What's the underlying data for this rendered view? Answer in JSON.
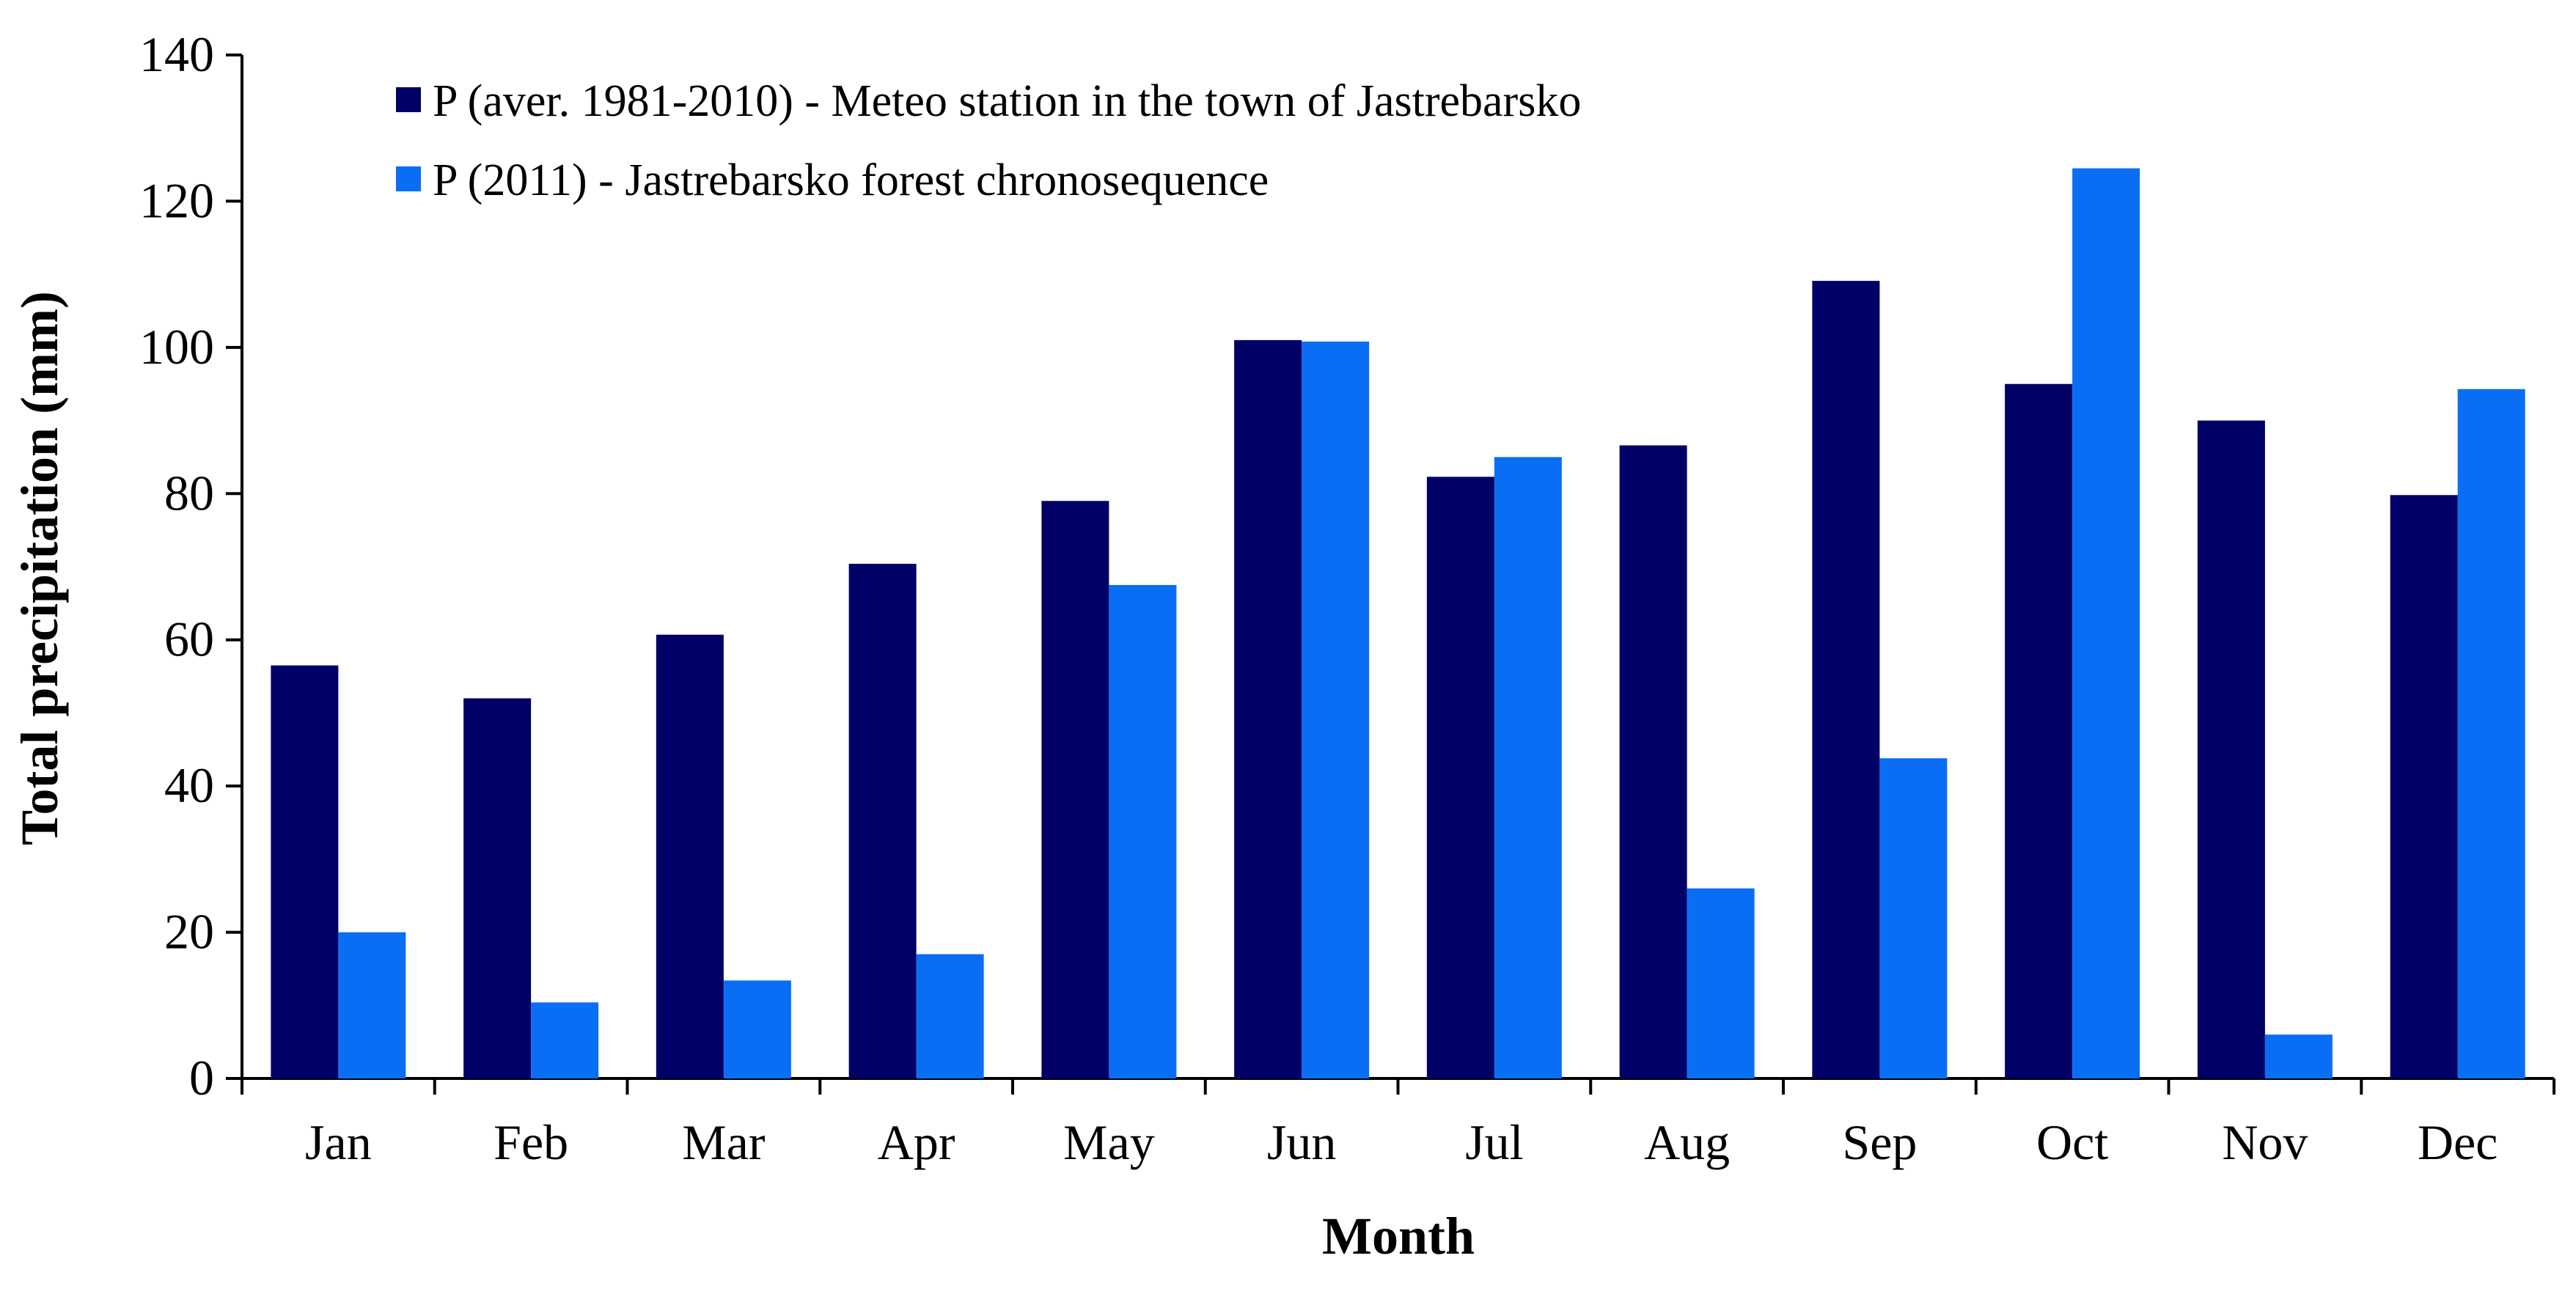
{
  "chart_data": {
    "type": "bar",
    "categories": [
      "Jan",
      "Feb",
      "Mar",
      "Apr",
      "May",
      "Jun",
      "Jul",
      "Aug",
      "Sep",
      "Oct",
      "Nov",
      "Dec"
    ],
    "series": [
      {
        "name": "P (aver. 1981-2010) - Meteo station in the town of Jastrebarsko",
        "color": "#000066",
        "values": [
          56.5,
          52.0,
          60.7,
          70.4,
          79.0,
          101.0,
          82.3,
          86.6,
          109.1,
          95.0,
          90.0,
          79.8
        ]
      },
      {
        "name": "P (2011) - Jastrebarsko forest chronosequence",
        "color": "#0A6EF5",
        "values": [
          20.0,
          10.4,
          13.4,
          17.0,
          67.5,
          100.8,
          85.0,
          26.0,
          43.8,
          124.5,
          6.0,
          94.3
        ]
      }
    ],
    "xlabel": "Month",
    "ylabel": "Total precipitation (mm)",
    "ylim": [
      0,
      140
    ],
    "yticks": [
      0,
      20,
      40,
      60,
      80,
      100,
      120,
      140
    ],
    "grid": false,
    "legend_position": "top-left"
  }
}
